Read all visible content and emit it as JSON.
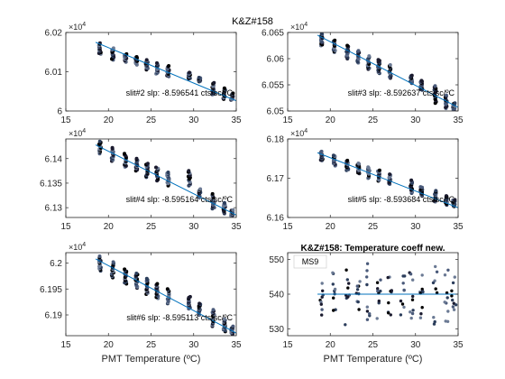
{
  "figure": {
    "title": "K&Z#158"
  },
  "chart_data": [
    {
      "type": "scatter",
      "xlim": [
        15,
        35
      ],
      "ylim": [
        6.0,
        6.02
      ],
      "x_ticks": [
        15,
        20,
        25,
        30,
        35
      ],
      "y_ticks": [
        "6",
        "6.01",
        "6.02"
      ],
      "y_tick_values": [
        6.0,
        6.01,
        6.02
      ],
      "y_exponent": "×10",
      "y_exponent_power": "4",
      "xlabel": "",
      "annotation": "slit#2 slp: -8.596541 cts/sc/ºC",
      "fit_line": {
        "x": [
          18.5,
          35
        ],
        "y": [
          6.0175,
          6.0026
        ]
      },
      "point_columns": [
        {
          "x": 19.0,
          "y_min": 6.0145,
          "y_max": 6.0173
        },
        {
          "x": 20.5,
          "y_min": 6.013,
          "y_max": 6.016
        },
        {
          "x": 22.0,
          "y_min": 6.0125,
          "y_max": 6.0145
        },
        {
          "x": 23.3,
          "y_min": 6.0118,
          "y_max": 6.0138
        },
        {
          "x": 24.5,
          "y_min": 6.0105,
          "y_max": 6.013
        },
        {
          "x": 25.7,
          "y_min": 6.0095,
          "y_max": 6.0122
        },
        {
          "x": 27.0,
          "y_min": 6.0088,
          "y_max": 6.0115
        },
        {
          "x": 29.5,
          "y_min": 6.0082,
          "y_max": 6.0098
        },
        {
          "x": 30.7,
          "y_min": 6.0075,
          "y_max": 6.0085
        },
        {
          "x": 32.3,
          "y_min": 6.0042,
          "y_max": 6.0072
        },
        {
          "x": 33.6,
          "y_min": 6.003,
          "y_max": 6.0058
        },
        {
          "x": 34.5,
          "y_min": 6.0028,
          "y_max": 6.0045
        }
      ]
    },
    {
      "type": "scatter",
      "xlim": [
        15,
        35
      ],
      "ylim": [
        6.05,
        6.065
      ],
      "x_ticks": [
        15,
        20,
        25,
        30,
        35
      ],
      "y_ticks": [
        "6.05",
        "6.055",
        "6.06",
        "6.065"
      ],
      "y_tick_values": [
        6.05,
        6.055,
        6.06,
        6.065
      ],
      "y_exponent": "×10",
      "y_exponent_power": "4",
      "xlabel": "",
      "annotation": "slit#3 slp: -8.592637 cts/sc/ºC",
      "fit_line": {
        "x": [
          18.5,
          35
        ],
        "y": [
          6.0645,
          6.0507
        ]
      },
      "point_columns": [
        {
          "x": 19.0,
          "y_min": 6.0625,
          "y_max": 6.0648
        },
        {
          "x": 20.5,
          "y_min": 6.0612,
          "y_max": 6.0635
        },
        {
          "x": 22.0,
          "y_min": 6.06,
          "y_max": 6.0625
        },
        {
          "x": 23.3,
          "y_min": 6.0592,
          "y_max": 6.0615
        },
        {
          "x": 24.5,
          "y_min": 6.058,
          "y_max": 6.0605
        },
        {
          "x": 25.7,
          "y_min": 6.0572,
          "y_max": 6.0598
        },
        {
          "x": 27.0,
          "y_min": 6.0563,
          "y_max": 6.0588
        },
        {
          "x": 29.5,
          "y_min": 6.0553,
          "y_max": 6.0568
        },
        {
          "x": 30.7,
          "y_min": 6.054,
          "y_max": 6.0558
        },
        {
          "x": 32.3,
          "y_min": 6.0515,
          "y_max": 6.0548
        },
        {
          "x": 33.6,
          "y_min": 6.0505,
          "y_max": 6.053
        },
        {
          "x": 34.5,
          "y_min": 6.0502,
          "y_max": 6.0515
        }
      ]
    },
    {
      "type": "scatter",
      "xlim": [
        15,
        35
      ],
      "ylim": [
        6.128,
        6.144
      ],
      "x_ticks": [
        15,
        20,
        25,
        30,
        35
      ],
      "y_ticks": [
        "6.13",
        "6.135",
        "6.14"
      ],
      "y_tick_values": [
        6.13,
        6.135,
        6.14
      ],
      "y_exponent": "×10",
      "y_exponent_power": "4",
      "xlabel": "",
      "annotation": "slit#4 slp: -8.595164 cts/sc/ºC",
      "fit_line": {
        "x": [
          18.5,
          35
        ],
        "y": [
          6.1428,
          6.1285
        ]
      },
      "point_columns": [
        {
          "x": 19.0,
          "y_min": 6.141,
          "y_max": 6.1435
        },
        {
          "x": 20.5,
          "y_min": 6.1395,
          "y_max": 6.1422
        },
        {
          "x": 22.0,
          "y_min": 6.1383,
          "y_max": 6.141
        },
        {
          "x": 23.3,
          "y_min": 6.1375,
          "y_max": 6.14
        },
        {
          "x": 24.5,
          "y_min": 6.1362,
          "y_max": 6.139
        },
        {
          "x": 25.7,
          "y_min": 6.1355,
          "y_max": 6.1382
        },
        {
          "x": 27.0,
          "y_min": 6.1345,
          "y_max": 6.1372
        },
        {
          "x": 29.5,
          "y_min": 6.1345,
          "y_max": 6.1375
        },
        {
          "x": 30.7,
          "y_min": 6.132,
          "y_max": 6.1338
        },
        {
          "x": 32.3,
          "y_min": 6.1298,
          "y_max": 6.1328
        },
        {
          "x": 33.6,
          "y_min": 6.1288,
          "y_max": 6.131
        },
        {
          "x": 34.5,
          "y_min": 6.1283,
          "y_max": 6.1295
        }
      ]
    },
    {
      "type": "scatter",
      "xlim": [
        15,
        35
      ],
      "ylim": [
        6.16,
        6.18
      ],
      "x_ticks": [
        15,
        20,
        25,
        30,
        35
      ],
      "y_ticks": [
        "6.16",
        "6.17",
        "6.18"
      ],
      "y_tick_values": [
        6.16,
        6.17,
        6.18
      ],
      "y_exponent": "×10",
      "y_exponent_power": "4",
      "xlabel": "",
      "annotation": "slit#5 slp: -8.593684 cts/sc/ºC",
      "fit_line": {
        "x": [
          18.5,
          35
        ],
        "y": [
          6.1765,
          6.1625
        ]
      },
      "point_columns": [
        {
          "x": 19.0,
          "y_min": 6.1745,
          "y_max": 6.1768
        },
        {
          "x": 20.5,
          "y_min": 6.1732,
          "y_max": 6.1758
        },
        {
          "x": 22.0,
          "y_min": 6.172,
          "y_max": 6.1745
        },
        {
          "x": 23.3,
          "y_min": 6.1712,
          "y_max": 6.1738
        },
        {
          "x": 24.5,
          "y_min": 6.17,
          "y_max": 6.1728
        },
        {
          "x": 25.7,
          "y_min": 6.1693,
          "y_max": 6.172
        },
        {
          "x": 27.0,
          "y_min": 6.1685,
          "y_max": 6.171
        },
        {
          "x": 29.5,
          "y_min": 6.1662,
          "y_max": 6.1695
        },
        {
          "x": 30.7,
          "y_min": 6.1655,
          "y_max": 6.1678
        },
        {
          "x": 32.3,
          "y_min": 6.164,
          "y_max": 6.1668
        },
        {
          "x": 33.6,
          "y_min": 6.1632,
          "y_max": 6.1655
        },
        {
          "x": 34.5,
          "y_min": 6.1628,
          "y_max": 6.1645
        }
      ]
    },
    {
      "type": "scatter",
      "xlim": [
        15,
        35
      ],
      "ylim": [
        6.186,
        6.202
      ],
      "x_ticks": [
        15,
        20,
        25,
        30,
        35
      ],
      "y_ticks": [
        "6.19",
        "6.195",
        "6.2"
      ],
      "y_tick_values": [
        6.19,
        6.195,
        6.2
      ],
      "y_exponent": "×10",
      "y_exponent_power": "4",
      "xlabel": "PMT Temperature (ºC)",
      "annotation": "slit#6 slp: -8.595113 cts/sc/ºC",
      "fit_line": {
        "x": [
          18.5,
          35
        ],
        "y": [
          6.2008,
          6.1865
        ]
      },
      "point_columns": [
        {
          "x": 19.0,
          "y_min": 6.1985,
          "y_max": 6.2013
        },
        {
          "x": 20.5,
          "y_min": 6.1972,
          "y_max": 6.2002
        },
        {
          "x": 22.0,
          "y_min": 6.196,
          "y_max": 6.1988
        },
        {
          "x": 23.3,
          "y_min": 6.1952,
          "y_max": 6.198
        },
        {
          "x": 24.5,
          "y_min": 6.194,
          "y_max": 6.197
        },
        {
          "x": 25.7,
          "y_min": 6.1932,
          "y_max": 6.196
        },
        {
          "x": 27.0,
          "y_min": 6.1922,
          "y_max": 6.195
        },
        {
          "x": 29.5,
          "y_min": 6.1912,
          "y_max": 6.1935
        },
        {
          "x": 30.7,
          "y_min": 6.19,
          "y_max": 6.1922
        },
        {
          "x": 32.3,
          "y_min": 6.1878,
          "y_max": 6.191
        },
        {
          "x": 33.6,
          "y_min": 6.1868,
          "y_max": 6.1892
        },
        {
          "x": 34.5,
          "y_min": 6.1862,
          "y_max": 6.1878
        }
      ]
    },
    {
      "type": "scatter",
      "title": "K&Z#158: Temperature coeff new.",
      "legend": "MS9",
      "legend_position": "top-left",
      "xlim": [
        15,
        35
      ],
      "ylim": [
        528,
        552
      ],
      "x_ticks": [
        15,
        20,
        25,
        30,
        35
      ],
      "y_ticks": [
        "530",
        "540",
        "550"
      ],
      "y_tick_values": [
        530,
        540,
        550
      ],
      "xlabel": "PMT Temperature (ºC)",
      "fit_line": {
        "x": [
          18.5,
          35
        ],
        "y": [
          540.0,
          540.0
        ]
      },
      "point_columns": [
        {
          "x": 19.0,
          "y_min": 533,
          "y_max": 547
        },
        {
          "x": 20.5,
          "y_min": 532,
          "y_max": 548
        },
        {
          "x": 22.0,
          "y_min": 530,
          "y_max": 550
        },
        {
          "x": 23.3,
          "y_min": 533,
          "y_max": 547
        },
        {
          "x": 24.5,
          "y_min": 531,
          "y_max": 549
        },
        {
          "x": 25.7,
          "y_min": 532,
          "y_max": 548
        },
        {
          "x": 27.0,
          "y_min": 533,
          "y_max": 547
        },
        {
          "x": 28.5,
          "y_min": 534,
          "y_max": 546
        },
        {
          "x": 29.5,
          "y_min": 531,
          "y_max": 549
        },
        {
          "x": 30.7,
          "y_min": 533,
          "y_max": 547
        },
        {
          "x": 32.3,
          "y_min": 530,
          "y_max": 551
        },
        {
          "x": 33.6,
          "y_min": 532,
          "y_max": 548
        },
        {
          "x": 34.5,
          "y_min": 535,
          "y_max": 545
        }
      ]
    }
  ],
  "colors": {
    "fit_line": "#0072bd",
    "points": [
      "#000000",
      "#1a1a2e",
      "#2c3e5c",
      "#4a5a7a",
      "#6b7a94"
    ],
    "axes": "#262626"
  }
}
